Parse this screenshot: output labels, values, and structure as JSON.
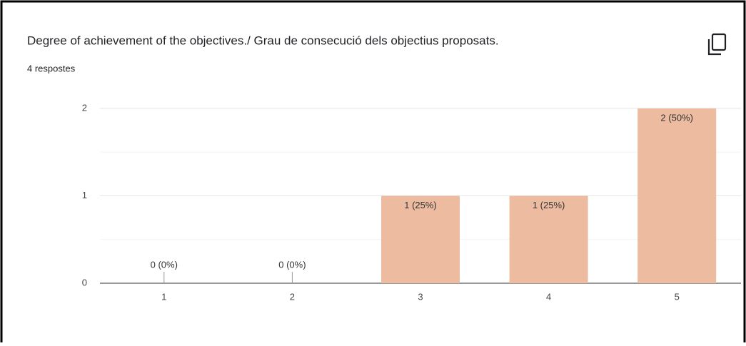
{
  "chart_data": {
    "type": "bar",
    "title": "Degree of achievement of the objectives./ Grau de consecució dels objectius proposats.",
    "subtitle": "4 respostes",
    "categories": [
      "1",
      "2",
      "3",
      "4",
      "5"
    ],
    "values": [
      0,
      0,
      1,
      1,
      2
    ],
    "value_labels": [
      "0 (0%)",
      "0 (0%)",
      "1 (25%)",
      "1 (25%)",
      "2 (50%)"
    ],
    "color": "#edbb9f",
    "ylim": [
      0,
      2
    ],
    "yticks": [
      0,
      1,
      2
    ],
    "minor_yticks": [
      0.5,
      1.5
    ],
    "grid": true
  }
}
